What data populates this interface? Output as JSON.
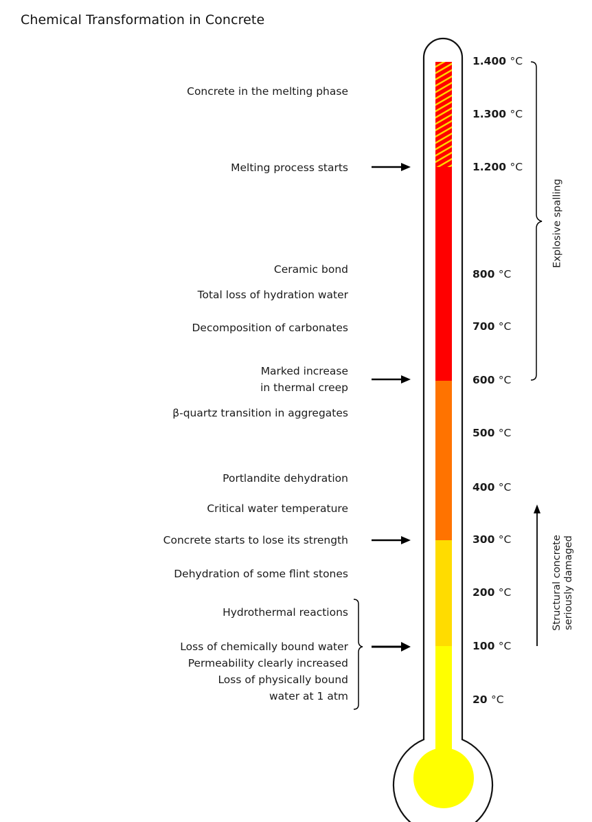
{
  "title": "Chemical Transformation in Concrete",
  "temperatures": [
    {
      "num": "1.400",
      "unit": "°C"
    },
    {
      "num": "1.300",
      "unit": "°C"
    },
    {
      "num": "1.200",
      "unit": "°C"
    },
    {
      "num": "800",
      "unit": "°C"
    },
    {
      "num": "700",
      "unit": "°C"
    },
    {
      "num": "600",
      "unit": "°C"
    },
    {
      "num": "500",
      "unit": "°C"
    },
    {
      "num": "400",
      "unit": "°C"
    },
    {
      "num": "300",
      "unit": "°C"
    },
    {
      "num": "200",
      "unit": "°C"
    },
    {
      "num": "100",
      "unit": "°C"
    },
    {
      "num": "20",
      "unit": "°C"
    }
  ],
  "labels": [
    "Concrete in the melting phase",
    "Melting process starts",
    "Ceramic bond",
    "Total loss of hydration water",
    "Decomposition of carbonates",
    "Marked increase",
    "in thermal creep",
    "β-quartz transition in aggregates",
    "Portlandite dehydration",
    "Critical water temperature",
    "Concrete starts to lose its strength",
    "Dehydration of some flint stones",
    "Hydrothermal reactions",
    "Loss of chemically bound water",
    "Permeability clearly increased",
    "Loss of physically bound",
    "water at 1 atm"
  ],
  "side_labels": {
    "explosive_spalling": "Explosive spalling",
    "structural_line1": "Structural concrete",
    "structural_line2": "seriously damaged"
  },
  "colors": {
    "melting_hatch": "#ffd400",
    "red_zone": "#ff0000",
    "orange_zone": "#ff7300",
    "amber_zone": "#ffdc00",
    "yellow_zone": "#ffff00"
  },
  "icons": [
    "arrow-right-icon",
    "arrow-up-icon",
    "brace-icon"
  ]
}
